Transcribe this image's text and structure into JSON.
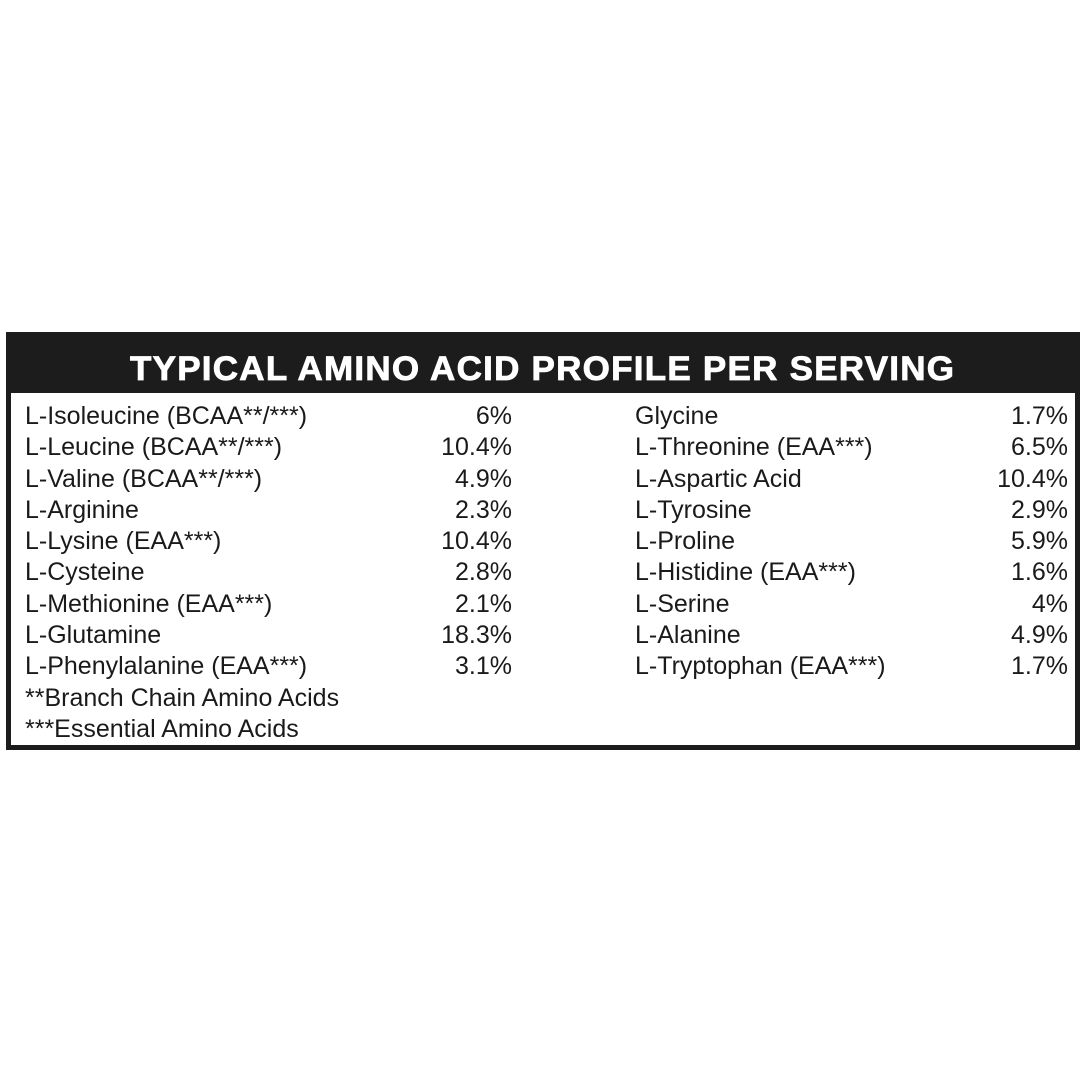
{
  "title": "TYPICAL AMINO ACID PROFILE PER SERVING",
  "left_column": [
    {
      "name": "L-Isoleucine (BCAA**/***)",
      "value": "6%"
    },
    {
      "name": "L-Leucine (BCAA**/***)",
      "value": "10.4%"
    },
    {
      "name": "L-Valine (BCAA**/***)",
      "value": "4.9%"
    },
    {
      "name": "L-Arginine",
      "value": "2.3%"
    },
    {
      "name": "L-Lysine (EAA***)",
      "value": "10.4%"
    },
    {
      "name": "L-Cysteine",
      "value": "2.8%"
    },
    {
      "name": "L-Methionine (EAA***)",
      "value": "2.1%"
    },
    {
      "name": "L-Glutamine",
      "value": "18.3%"
    },
    {
      "name": "L-Phenylalanine (EAA***)",
      "value": "3.1%"
    }
  ],
  "right_column": [
    {
      "name": "Glycine",
      "value": "1.7%"
    },
    {
      "name": "L-Threonine (EAA***)",
      "value": "6.5%"
    },
    {
      "name": "L-Aspartic Acid",
      "value": "10.4%"
    },
    {
      "name": "L-Tyrosine",
      "value": "2.9%"
    },
    {
      "name": "L-Proline",
      "value": "5.9%"
    },
    {
      "name": "L-Histidine (EAA***)",
      "value": "1.6%"
    },
    {
      "name": "L-Serine",
      "value": "4%"
    },
    {
      "name": "L-Alanine",
      "value": "4.9%"
    },
    {
      "name": "L-Tryptophan (EAA***)",
      "value": "1.7%"
    }
  ],
  "footnotes": [
    "**Branch Chain Amino Acids",
    "***Essential Amino Acids"
  ],
  "colors": {
    "header_bg": "#1c1c1c",
    "header_text": "#ffffff",
    "text": "#1a1a1a"
  }
}
